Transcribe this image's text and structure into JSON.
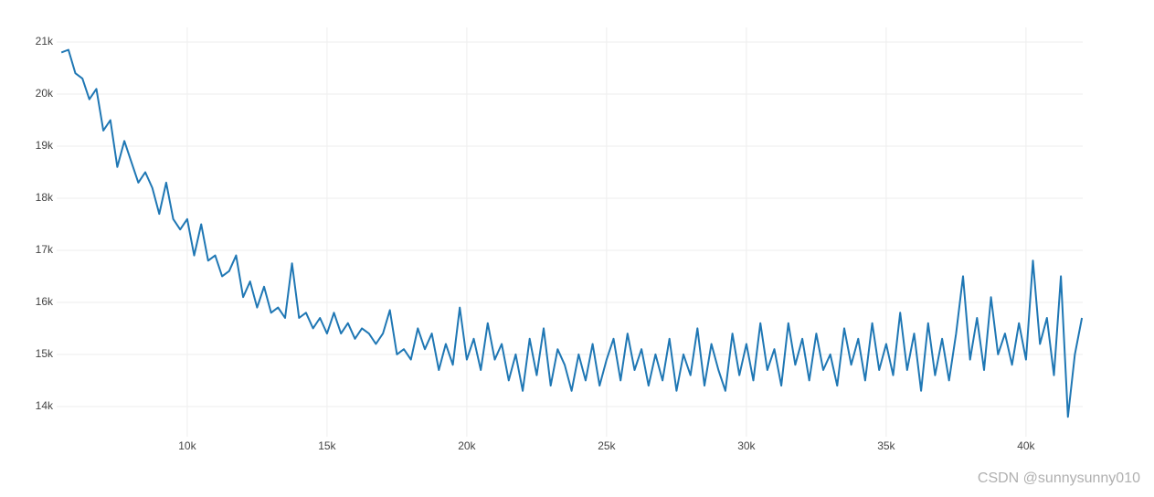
{
  "chart_data": {
    "type": "line",
    "x": [
      5500,
      5750,
      6000,
      6250,
      6500,
      6750,
      7000,
      7250,
      7500,
      7750,
      8000,
      8250,
      8500,
      8750,
      9000,
      9250,
      9500,
      9750,
      10000,
      10250,
      10500,
      10750,
      11000,
      11250,
      11500,
      11750,
      12000,
      12250,
      12500,
      12750,
      13000,
      13250,
      13500,
      13750,
      14000,
      14250,
      14500,
      14750,
      15000,
      15250,
      15500,
      15750,
      16000,
      16250,
      16500,
      16750,
      17000,
      17250,
      17500,
      17750,
      18000,
      18250,
      18500,
      18750,
      19000,
      19250,
      19500,
      19750,
      20000,
      20250,
      20500,
      20750,
      21000,
      21250,
      21500,
      21750,
      22000,
      22250,
      22500,
      22750,
      23000,
      23250,
      23500,
      23750,
      24000,
      24250,
      24500,
      24750,
      25000,
      25250,
      25500,
      25750,
      26000,
      26250,
      26500,
      26750,
      27000,
      27250,
      27500,
      27750,
      28000,
      28250,
      28500,
      28750,
      29000,
      29250,
      29500,
      29750,
      30000,
      30250,
      30500,
      30750,
      31000,
      31250,
      31500,
      31750,
      32000,
      32250,
      32500,
      32750,
      33000,
      33250,
      33500,
      33750,
      34000,
      34250,
      34500,
      34750,
      35000,
      35250,
      35500,
      35750,
      36000,
      36250,
      36500,
      36750,
      37000,
      37250,
      37500,
      37750,
      38000,
      38250,
      38500,
      38750,
      39000,
      39250,
      39500,
      39750,
      40000,
      40250,
      40500,
      40750,
      41000,
      41250,
      41500,
      41750,
      42000
    ],
    "series": [
      {
        "color": "#1f77b4",
        "values": [
          20800,
          20850,
          20400,
          20300,
          19900,
          20100,
          19300,
          19500,
          18600,
          19100,
          18700,
          18300,
          18500,
          18200,
          17700,
          18300,
          17600,
          17400,
          17600,
          16900,
          17500,
          16800,
          16900,
          16500,
          16600,
          16900,
          16100,
          16400,
          15900,
          16300,
          15800,
          15900,
          15700,
          16750,
          15700,
          15800,
          15500,
          15700,
          15400,
          15800,
          15400,
          15600,
          15300,
          15500,
          15400,
          15200,
          15400,
          15850,
          15000,
          15100,
          14900,
          15500,
          15100,
          15400,
          14700,
          15200,
          14800,
          15900,
          14900,
          15300,
          14700,
          15600,
          14900,
          15200,
          14500,
          15000,
          14300,
          15300,
          14600,
          15500,
          14400,
          15100,
          14800,
          14300,
          15000,
          14500,
          15200,
          14400,
          14900,
          15300,
          14500,
          15400,
          14700,
          15100,
          14400,
          15000,
          14500,
          15300,
          14300,
          15000,
          14600,
          15500,
          14400,
          15200,
          14700,
          14300,
          15400,
          14600,
          15200,
          14500,
          15600,
          14700,
          15100,
          14400,
          15600,
          14800,
          15300,
          14500,
          15400,
          14700,
          15000,
          14400,
          15500,
          14800,
          15300,
          14500,
          15600,
          14700,
          15200,
          14600,
          15800,
          14700,
          15400,
          14300,
          15600,
          14600,
          15300,
          14500,
          15400,
          16500,
          14900,
          15700,
          14700,
          16100,
          15000,
          15400,
          14800,
          15600,
          14900,
          16800,
          15200,
          15700,
          14600,
          16500,
          13800,
          15000,
          15700
        ]
      }
    ],
    "xlim": [
      5330,
      42030
    ],
    "ylim": [
      13420,
      21280
    ],
    "xticks": [
      {
        "value": 10000,
        "label": "10k"
      },
      {
        "value": 15000,
        "label": "15k"
      },
      {
        "value": 20000,
        "label": "20k"
      },
      {
        "value": 25000,
        "label": "25k"
      },
      {
        "value": 30000,
        "label": "30k"
      },
      {
        "value": 35000,
        "label": "35k"
      },
      {
        "value": 40000,
        "label": "40k"
      }
    ],
    "yticks": [
      {
        "value": 14000,
        "label": "14k"
      },
      {
        "value": 15000,
        "label": "15k"
      },
      {
        "value": 16000,
        "label": "16k"
      },
      {
        "value": 17000,
        "label": "17k"
      },
      {
        "value": 18000,
        "label": "18k"
      },
      {
        "value": 19000,
        "label": "19k"
      },
      {
        "value": 20000,
        "label": "20k"
      },
      {
        "value": 21000,
        "label": "21k"
      }
    ],
    "grid": true,
    "annotation": "CSDN @sunnysunny010"
  }
}
